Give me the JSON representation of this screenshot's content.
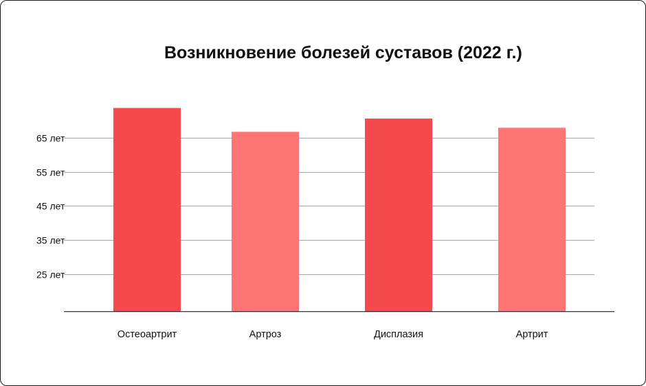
{
  "chart_data": {
    "type": "bar",
    "title": "Возникновение болезей суставов (2022 г.)",
    "xlabel": "",
    "ylabel": "",
    "categories": [
      "Остеоартрит",
      "Артроз",
      "Дисплазия",
      "Артрит"
    ],
    "values": [
      73.7,
      66.7,
      70.6,
      67.9
    ],
    "yticks": [
      25,
      35,
      45,
      55,
      65
    ],
    "ytick_labels": [
      "25 лет",
      "35 лет",
      "45 лет",
      "55 лет",
      "65 лет"
    ],
    "ylim": [
      14,
      75
    ],
    "grid": true,
    "legend": "none",
    "colors": {
      "bar_dark": "#f44a4d",
      "bar_light": "#ff7575",
      "grid": "#a6a6a6",
      "axis": "#333333"
    },
    "bar_color_pattern": [
      "dark",
      "light",
      "dark",
      "light"
    ]
  }
}
